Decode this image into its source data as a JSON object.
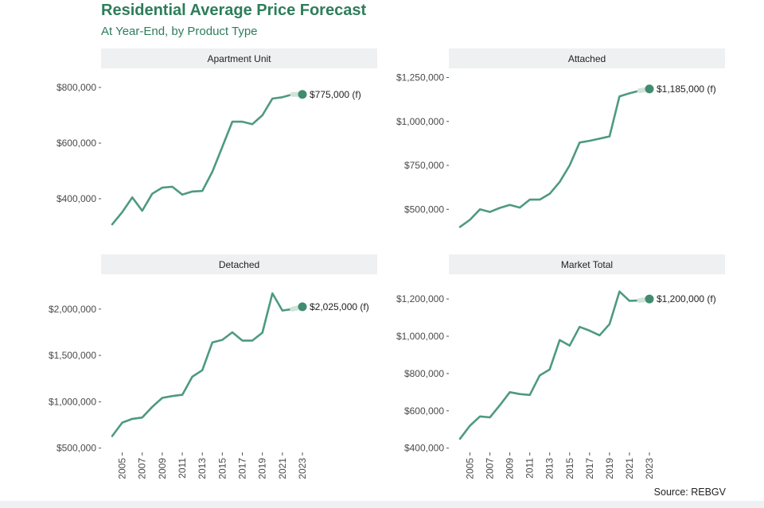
{
  "title": "Residential Average Price Forecast",
  "subtitle": "At Year-End, by Product Type",
  "source": "Source: REBGV",
  "colors": {
    "title": "#2e7d5b",
    "line": "#4e9a7f",
    "forecast_point": "#3f8c6f",
    "forecast_segment": "#cfe3da",
    "strip": "#eef0f2"
  },
  "x_tick_labels": [
    "2005",
    "2007",
    "2009",
    "2011",
    "2013",
    "2015",
    "2017",
    "2019",
    "2021",
    "2023"
  ],
  "chart_data": [
    {
      "type": "line",
      "title": "Apartment Unit",
      "x": [
        2004,
        2005,
        2006,
        2007,
        2008,
        2009,
        2010,
        2011,
        2012,
        2013,
        2014,
        2015,
        2016,
        2017,
        2018,
        2019,
        2020,
        2021,
        2022
      ],
      "values": [
        308000,
        352000,
        405000,
        357000,
        418000,
        440000,
        443000,
        415000,
        426000,
        428000,
        497000,
        587000,
        677000,
        677000,
        668000,
        700000,
        760000,
        765000,
        775000
      ],
      "forecast": {
        "x": 2023,
        "value": 775000,
        "label": "$775,000 (f)"
      },
      "yticks": [
        400000,
        600000,
        800000
      ],
      "ytick_labels": [
        "$400,000",
        "$600,000",
        "$800,000"
      ],
      "ylim": [
        280000,
        820000
      ]
    },
    {
      "type": "line",
      "title": "Attached",
      "x": [
        2004,
        2005,
        2006,
        2007,
        2008,
        2009,
        2010,
        2011,
        2012,
        2013,
        2014,
        2015,
        2016,
        2017,
        2018,
        2019,
        2020,
        2021,
        2022
      ],
      "values": [
        400000,
        440000,
        500000,
        485000,
        508000,
        525000,
        510000,
        555000,
        555000,
        588000,
        656000,
        750000,
        880000,
        890000,
        902000,
        915000,
        1143000,
        1160000,
        1175000
      ],
      "forecast": {
        "x": 2023,
        "value": 1185000,
        "label": "$1,185,000 (f)"
      },
      "yticks": [
        500000,
        750000,
        1000000,
        1250000
      ],
      "ytick_labels": [
        "$500,000",
        "$750,000",
        "$1,000,000",
        "$1,250,000"
      ],
      "ylim": [
        370000,
        1275000
      ]
    },
    {
      "type": "line",
      "title": "Detached",
      "x": [
        2004,
        2005,
        2006,
        2007,
        2008,
        2009,
        2010,
        2011,
        2012,
        2013,
        2014,
        2015,
        2016,
        2017,
        2018,
        2019,
        2020,
        2021,
        2022
      ],
      "values": [
        630000,
        775000,
        815000,
        830000,
        945000,
        1042000,
        1062000,
        1075000,
        1270000,
        1340000,
        1640000,
        1668000,
        1750000,
        1660000,
        1660000,
        1745000,
        2170000,
        1985000,
        2000000
      ],
      "forecast": {
        "x": 2023,
        "value": 2025000,
        "label": "$2,025,000 (f)"
      },
      "yticks": [
        500000,
        1000000,
        1500000,
        2000000
      ],
      "ytick_labels": [
        "$500,000",
        "$1,000,000",
        "$1,500,000",
        "$2,000,000"
      ],
      "ylim": [
        480000,
        2230000
      ]
    },
    {
      "type": "line",
      "title": "Market Total",
      "x": [
        2004,
        2005,
        2006,
        2007,
        2008,
        2009,
        2010,
        2011,
        2012,
        2013,
        2014,
        2015,
        2016,
        2017,
        2018,
        2019,
        2020,
        2021,
        2022
      ],
      "values": [
        450000,
        520000,
        570000,
        565000,
        630000,
        700000,
        690000,
        685000,
        790000,
        822000,
        980000,
        950000,
        1050000,
        1030000,
        1005000,
        1065000,
        1240000,
        1190000,
        1192000
      ],
      "forecast": {
        "x": 2023,
        "value": 1200000,
        "label": "$1,200,000 (f)"
      },
      "yticks": [
        400000,
        600000,
        800000,
        1000000,
        1200000
      ],
      "ytick_labels": [
        "$400,000",
        "$600,000",
        "$800,000",
        "$1,000,000",
        "$1,200,000"
      ],
      "ylim": [
        390000,
        1260000
      ]
    }
  ]
}
